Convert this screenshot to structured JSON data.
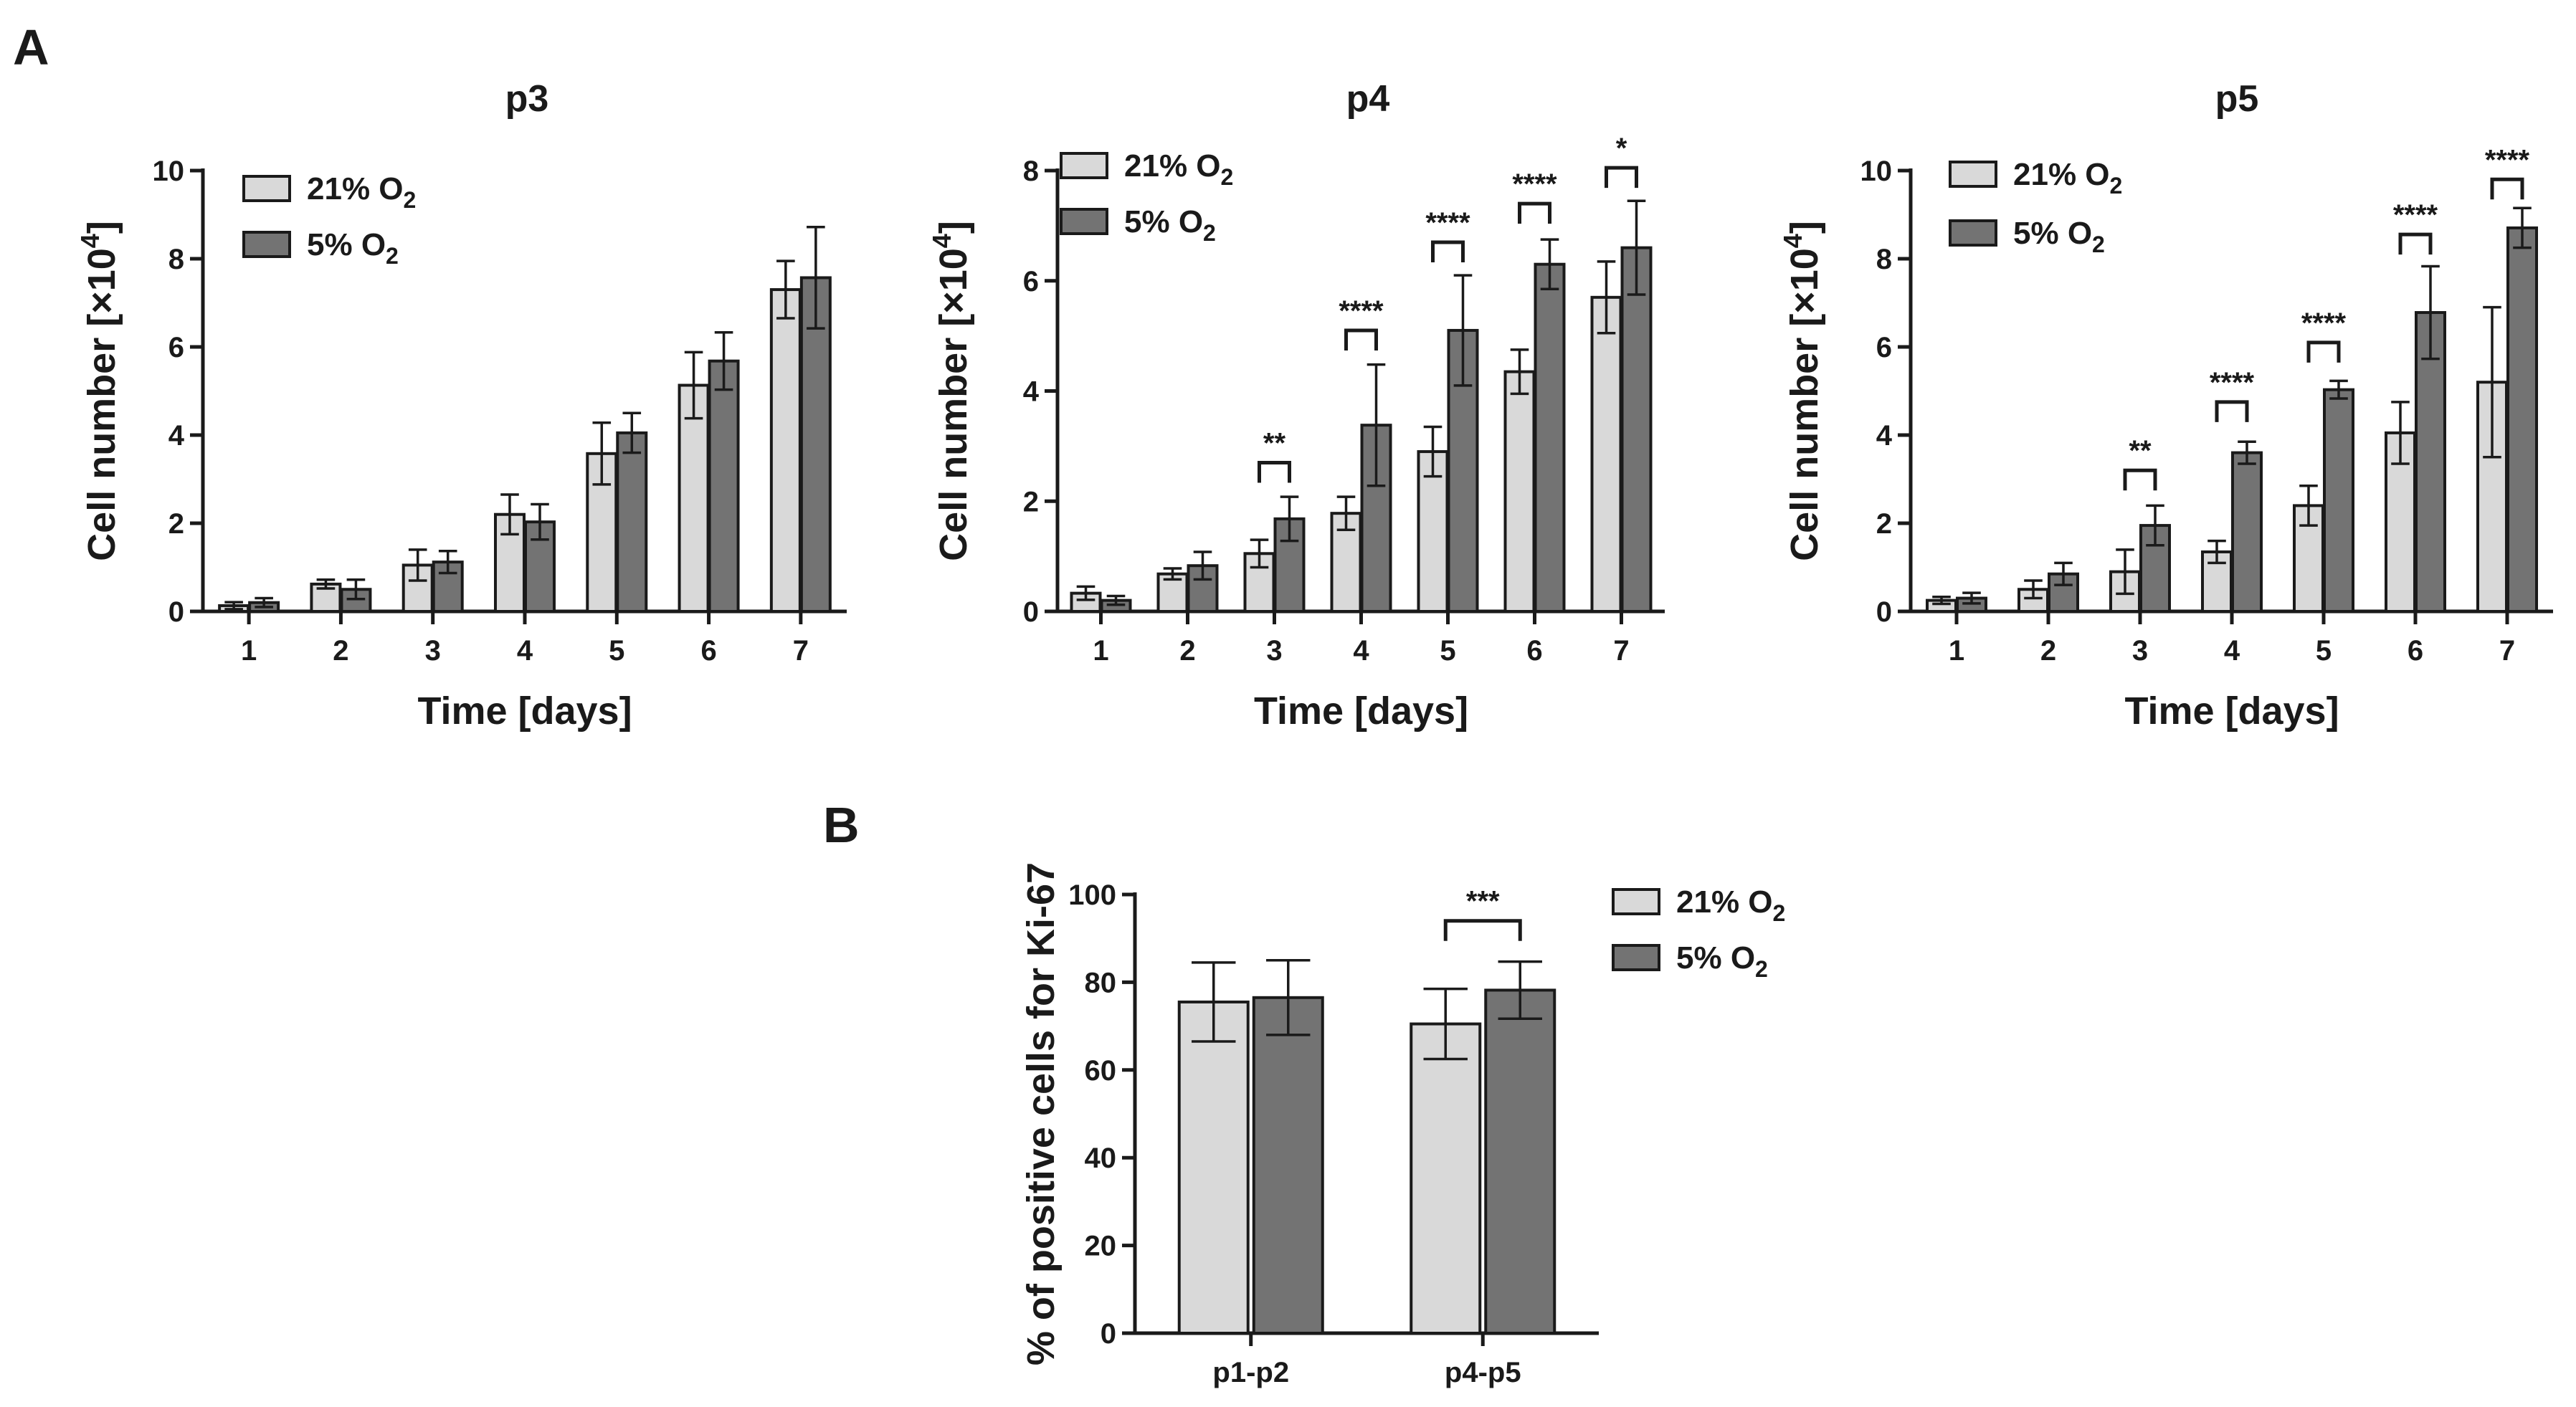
{
  "panels": {
    "a": "A",
    "b": "B"
  },
  "legend": {
    "items": [
      {
        "base": "21% O",
        "sub": "2",
        "color": "#d9d9d9"
      },
      {
        "base": "5% O",
        "sub": "2",
        "color": "#737373"
      }
    ]
  },
  "chart_data": [
    {
      "type": "bar",
      "panel": "A",
      "title": "p3",
      "xlabel": "Time [days]",
      "ylabel_base": "Cell number [×10",
      "ylabel_sup": "4",
      "ylabel_end": "]",
      "categories": [
        "1",
        "2",
        "3",
        "4",
        "5",
        "6",
        "7"
      ],
      "ylim": [
        0,
        10
      ],
      "yticks": [
        0,
        2,
        4,
        6,
        8,
        10
      ],
      "legend_position": "top-left",
      "series": [
        {
          "name": "21% O2",
          "values": [
            0.13,
            0.62,
            1.05,
            2.2,
            3.58,
            5.13,
            7.3
          ],
          "errors": [
            0.08,
            0.1,
            0.35,
            0.45,
            0.7,
            0.75,
            0.65
          ]
        },
        {
          "name": "5% O2",
          "values": [
            0.2,
            0.5,
            1.12,
            2.03,
            4.05,
            5.68,
            7.57
          ],
          "errors": [
            0.1,
            0.22,
            0.25,
            0.4,
            0.45,
            0.65,
            1.15
          ]
        }
      ],
      "significance": []
    },
    {
      "type": "bar",
      "panel": "A",
      "title": "p4",
      "xlabel": "Time [days]",
      "ylabel_base": "Cell number [×10",
      "ylabel_sup": "4",
      "ylabel_end": "]",
      "categories": [
        "1",
        "2",
        "3",
        "4",
        "5",
        "6",
        "7"
      ],
      "ylim": [
        0,
        8
      ],
      "yticks": [
        0,
        2,
        4,
        6,
        8
      ],
      "legend_position": "top-left",
      "series": [
        {
          "name": "21% O2",
          "values": [
            0.33,
            0.68,
            1.05,
            1.78,
            2.9,
            4.35,
            5.7
          ],
          "errors": [
            0.12,
            0.1,
            0.25,
            0.3,
            0.45,
            0.4,
            0.65
          ]
        },
        {
          "name": "5% O2",
          "values": [
            0.2,
            0.83,
            1.68,
            3.38,
            5.1,
            6.3,
            6.6
          ],
          "errors": [
            0.08,
            0.25,
            0.4,
            1.1,
            1.0,
            0.45,
            0.85
          ]
        }
      ],
      "significance": [
        {
          "category": "3",
          "label": "**",
          "y": 2.7
        },
        {
          "category": "4",
          "label": "****",
          "y": 5.1
        },
        {
          "category": "5",
          "label": "****",
          "y": 6.7
        },
        {
          "category": "6",
          "label": "****",
          "y": 7.4
        },
        {
          "category": "7",
          "label": "*",
          "y": 8.05
        }
      ]
    },
    {
      "type": "bar",
      "panel": "A",
      "title": "p5",
      "xlabel": "Time [days]",
      "ylabel_base": "Cell number [×10",
      "ylabel_sup": "4",
      "ylabel_end": "]",
      "categories": [
        "1",
        "2",
        "3",
        "4",
        "5",
        "6",
        "7"
      ],
      "ylim": [
        0,
        10
      ],
      "yticks": [
        0,
        2,
        4,
        6,
        8,
        10
      ],
      "legend_position": "top-left",
      "series": [
        {
          "name": "21% O2",
          "values": [
            0.25,
            0.5,
            0.9,
            1.35,
            2.4,
            4.05,
            5.2
          ],
          "errors": [
            0.08,
            0.2,
            0.5,
            0.25,
            0.45,
            0.7,
            1.7
          ]
        },
        {
          "name": "5% O2",
          "values": [
            0.3,
            0.85,
            1.95,
            3.6,
            5.03,
            6.78,
            8.7
          ],
          "errors": [
            0.12,
            0.25,
            0.45,
            0.25,
            0.2,
            1.05,
            0.45
          ]
        }
      ],
      "significance": [
        {
          "category": "3",
          "label": "**",
          "y": 3.2
        },
        {
          "category": "4",
          "label": "****",
          "y": 4.75
        },
        {
          "category": "5",
          "label": "****",
          "y": 6.1
        },
        {
          "category": "6",
          "label": "****",
          "y": 8.55
        },
        {
          "category": "7",
          "label": "****",
          "y": 9.8
        }
      ]
    },
    {
      "type": "bar",
      "panel": "B",
      "title": "",
      "xlabel": "",
      "ylabel_base": "% of positive cells for Ki-67",
      "ylabel_sup": "",
      "ylabel_end": "",
      "categories": [
        "p1-p2",
        "p4-p5"
      ],
      "ylim": [
        0,
        100
      ],
      "yticks": [
        0,
        20,
        40,
        60,
        80,
        100
      ],
      "legend_position": "outside-right",
      "series": [
        {
          "name": "21% O2",
          "values": [
            75.5,
            70.5
          ],
          "errors": [
            9,
            8
          ]
        },
        {
          "name": "5% O2",
          "values": [
            76.5,
            78.2
          ],
          "errors": [
            8.5,
            6.5
          ]
        }
      ],
      "significance": [
        {
          "category": "p4-p5",
          "label": "***",
          "y": 94
        }
      ]
    }
  ]
}
